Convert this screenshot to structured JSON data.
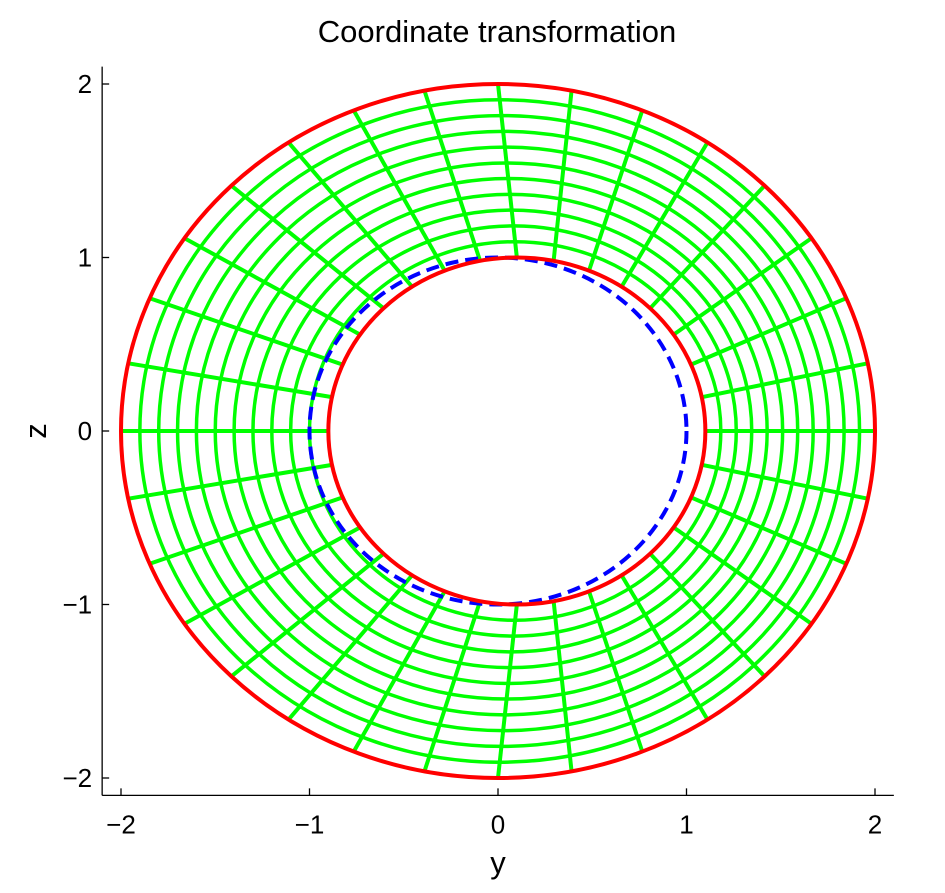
{
  "chart_data": {
    "type": "line",
    "title": "Coordinate transformation",
    "xlabel": "y",
    "ylabel": "z",
    "xlim": [
      -2.1,
      2.1
    ],
    "ylim": [
      -2.1,
      2.1
    ],
    "xticks": [
      -2,
      -1,
      0,
      1,
      2
    ],
    "yticks": [
      -2,
      -1,
      0,
      1,
      2
    ],
    "xtick_labels": [
      "−2",
      "−1",
      "0",
      "1",
      "2"
    ],
    "ytick_labels": [
      "−2",
      "−1",
      "0",
      "1",
      "2"
    ],
    "grid": false,
    "legend": "none",
    "colors": {
      "boundary": "#ff0000",
      "mesh": "#00ff00",
      "reference_circle": "#0000ff"
    },
    "series": [
      {
        "kind": "outer-boundary",
        "style": "solid",
        "color": "#ff0000",
        "center": [
          0,
          0
        ],
        "radius": 2
      },
      {
        "kind": "inner-boundary",
        "style": "solid",
        "color": "#ff0000",
        "center": [
          0.1,
          0
        ],
        "radius": 1
      },
      {
        "kind": "reference-circle",
        "style": "dashed",
        "color": "#0000ff",
        "center": [
          0,
          0
        ],
        "radius": 1
      },
      {
        "kind": "mesh-circles",
        "style": "solid",
        "color": "#00ff00",
        "circles": [
          {
            "center": [
              0.091,
              0
            ],
            "radius": 1.091
          },
          {
            "center": [
              0.082,
              0
            ],
            "radius": 1.182
          },
          {
            "center": [
              0.073,
              0
            ],
            "radius": 1.273
          },
          {
            "center": [
              0.064,
              0
            ],
            "radius": 1.364
          },
          {
            "center": [
              0.055,
              0
            ],
            "radius": 1.455
          },
          {
            "center": [
              0.045,
              0
            ],
            "radius": 1.545
          },
          {
            "center": [
              0.036,
              0
            ],
            "radius": 1.636
          },
          {
            "center": [
              0.027,
              0
            ],
            "radius": 1.727
          },
          {
            "center": [
              0.018,
              0
            ],
            "radius": 1.818
          },
          {
            "center": [
              0.009,
              0
            ],
            "radius": 1.909
          }
        ]
      },
      {
        "kind": "mesh-radial-lines",
        "style": "solid",
        "color": "#00ff00",
        "count": 32
      }
    ]
  }
}
